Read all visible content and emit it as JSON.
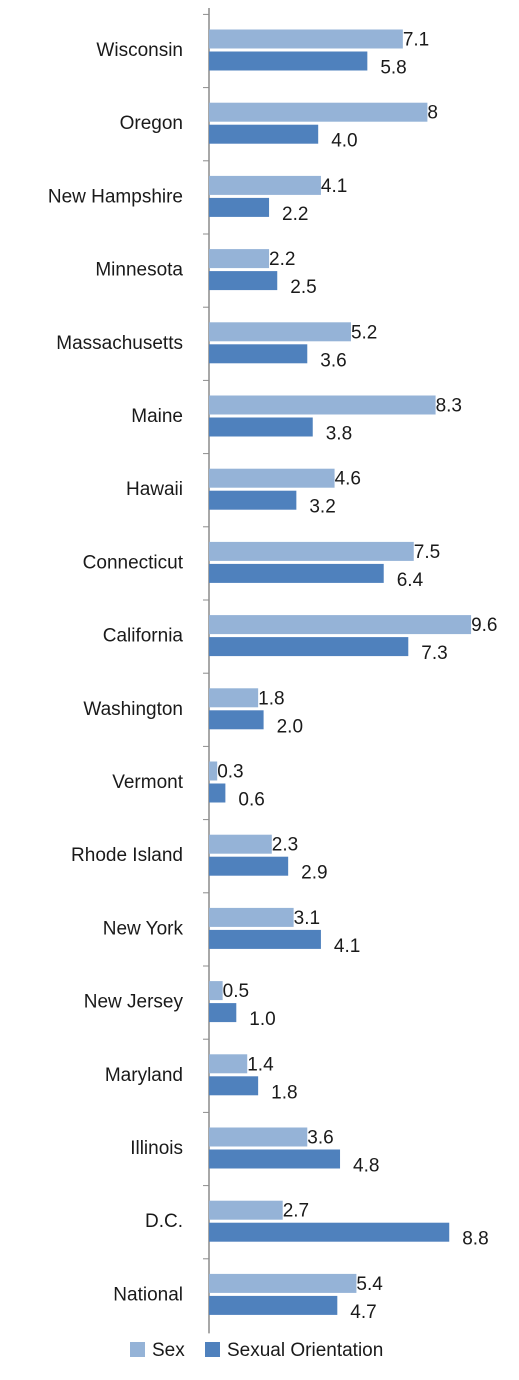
{
  "chart_data": {
    "type": "bar",
    "orientation": "horizontal",
    "title": "",
    "xlabel": "",
    "ylabel": "",
    "categories": [
      "Wisconsin",
      "Oregon",
      "New Hampshire",
      "Minnesota",
      "Massachusetts",
      "Maine",
      "Hawaii",
      "Connecticut",
      "California",
      "Washington",
      "Vermont",
      "Rhode Island",
      "New York",
      "New Jersey",
      "Maryland",
      "Illinois",
      "D.C.",
      "National"
    ],
    "series": [
      {
        "name": "Sex",
        "color": "#95B3D7",
        "values": [
          7.1,
          8,
          4.1,
          2.2,
          5.2,
          8.3,
          4.6,
          7.5,
          9.6,
          1.8,
          0.3,
          2.3,
          3.1,
          0.5,
          1.4,
          3.6,
          2.7,
          5.4
        ],
        "labels": [
          "7.1",
          "8",
          "4.1",
          "2.2",
          "5.2",
          "8.3",
          "4.6",
          "7.5",
          "9.6",
          "1.8",
          "0.3",
          "2.3",
          "3.1",
          "0.5",
          "1.4",
          "3.6",
          "2.7",
          "5.4"
        ]
      },
      {
        "name": "Sexual Orientation",
        "color": "#4F81BD",
        "values": [
          5.8,
          4.0,
          2.2,
          2.5,
          3.6,
          3.8,
          3.2,
          6.4,
          7.3,
          2.0,
          0.6,
          2.9,
          4.1,
          1.0,
          1.8,
          4.8,
          8.8,
          4.7
        ],
        "labels": [
          "5.8",
          "4.0",
          "2.2",
          "2.5",
          "3.6",
          "3.8",
          "3.2",
          "6.4",
          "7.3",
          "2.0",
          "0.6",
          "2.9",
          "4.1",
          "1.0",
          "1.8",
          "4.8",
          "8.8",
          "4.7"
        ]
      }
    ],
    "xlim": [
      0,
      10
    ],
    "grid": false,
    "legend_position": "bottom"
  }
}
